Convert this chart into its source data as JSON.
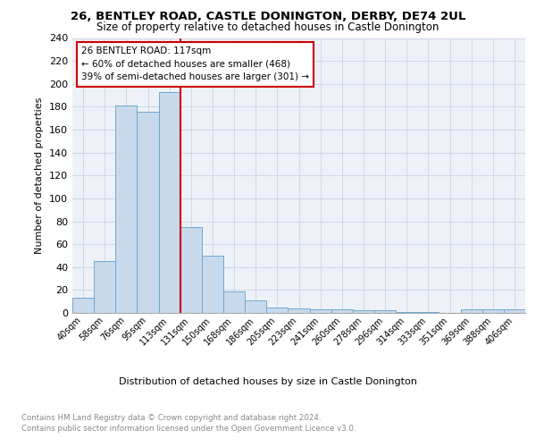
{
  "title1": "26, BENTLEY ROAD, CASTLE DONINGTON, DERBY, DE74 2UL",
  "title2": "Size of property relative to detached houses in Castle Donington",
  "xlabel": "Distribution of detached houses by size in Castle Donington",
  "ylabel": "Number of detached properties",
  "bin_labels": [
    "40sqm",
    "58sqm",
    "76sqm",
    "95sqm",
    "113sqm",
    "131sqm",
    "150sqm",
    "168sqm",
    "186sqm",
    "205sqm",
    "223sqm",
    "241sqm",
    "260sqm",
    "278sqm",
    "296sqm",
    "314sqm",
    "333sqm",
    "351sqm",
    "369sqm",
    "388sqm",
    "406sqm"
  ],
  "bar_heights": [
    13,
    45,
    181,
    176,
    193,
    75,
    50,
    19,
    11,
    5,
    4,
    3,
    3,
    2,
    2,
    1,
    1,
    0,
    3,
    3,
    3
  ],
  "bar_color": "#c9d9ec",
  "bar_edge_color": "#6fa8d0",
  "annotation_line_color": "#cc0000",
  "annotation_box_text": "26 BENTLEY ROAD: 117sqm\n← 60% of detached houses are smaller (468)\n39% of semi-detached houses are larger (301) →",
  "annotation_box_color": "#cc0000",
  "ylim": [
    0,
    240
  ],
  "yticks": [
    0,
    20,
    40,
    60,
    80,
    100,
    120,
    140,
    160,
    180,
    200,
    220,
    240
  ],
  "footer_line1": "Contains HM Land Registry data © Crown copyright and database right 2024.",
  "footer_line2": "Contains public sector information licensed under the Open Government Licence v3.0.",
  "grid_color": "#d0d8e8",
  "bg_color": "#eef2f8"
}
